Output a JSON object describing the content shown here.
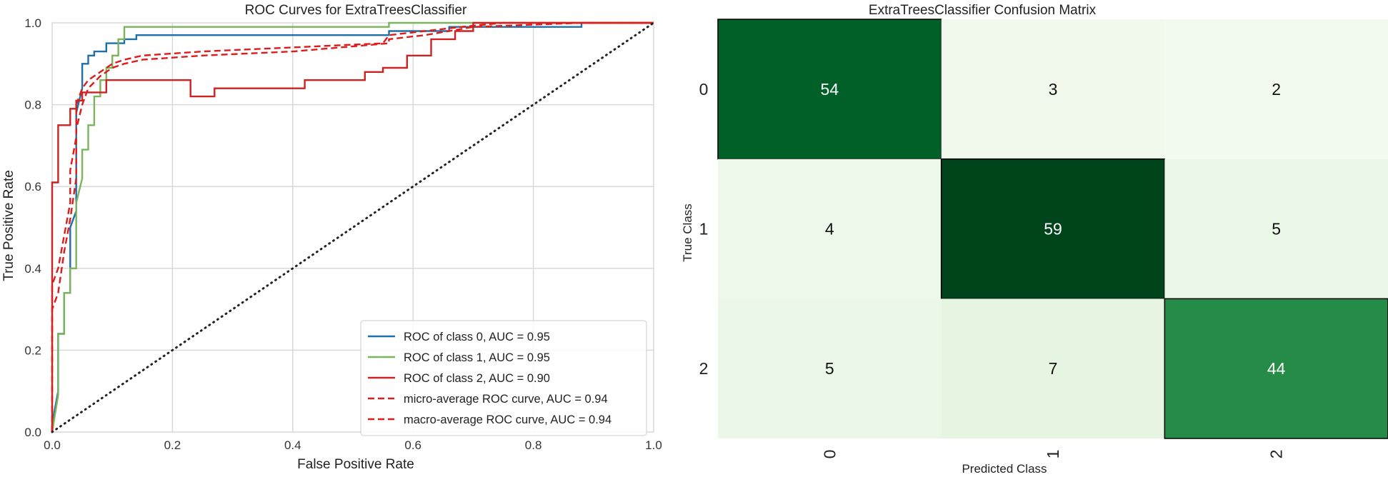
{
  "chart_data": [
    {
      "type": "line",
      "title": "ROC Curves for ExtraTreesClassifier",
      "xlabel": "False Positive Rate",
      "ylabel": "True Positive Rate",
      "xlim": [
        0.0,
        1.0
      ],
      "ylim": [
        0.0,
        1.0
      ],
      "x_ticks": [
        "0.0",
        "0.2",
        "0.4",
        "0.6",
        "0.8",
        "1.0"
      ],
      "y_ticks": [
        "0.0",
        "0.2",
        "0.4",
        "0.6",
        "0.8",
        "1.0"
      ],
      "grid": true,
      "legend_position": "lower-right",
      "series": [
        {
          "name": "ROC of class 0, AUC = 0.95",
          "color": "#1f6fa8",
          "dash": "solid",
          "points": [
            [
              0,
              0
            ],
            [
              0,
              0.02
            ],
            [
              0.01,
              0.1
            ],
            [
              0.01,
              0.24
            ],
            [
              0.02,
              0.24
            ],
            [
              0.02,
              0.34
            ],
            [
              0.03,
              0.34
            ],
            [
              0.03,
              0.44
            ],
            [
              0.03,
              0.5
            ],
            [
              0.04,
              0.54
            ],
            [
              0.04,
              0.78
            ],
            [
              0.05,
              0.84
            ],
            [
              0.05,
              0.9
            ],
            [
              0.06,
              0.9
            ],
            [
              0.06,
              0.92
            ],
            [
              0.07,
              0.92
            ],
            [
              0.07,
              0.93
            ],
            [
              0.09,
              0.93
            ],
            [
              0.09,
              0.95
            ],
            [
              0.12,
              0.95
            ],
            [
              0.12,
              0.96
            ],
            [
              0.14,
              0.96
            ],
            [
              0.14,
              0.97
            ],
            [
              0.56,
              0.97
            ],
            [
              0.56,
              0.98
            ],
            [
              0.66,
              0.98
            ],
            [
              0.66,
              0.99
            ],
            [
              0.88,
              0.99
            ],
            [
              0.88,
              1.0
            ],
            [
              1.0,
              1.0
            ]
          ]
        },
        {
          "name": "ROC of class 1, AUC = 0.95",
          "color": "#7ab55c",
          "dash": "solid",
          "points": [
            [
              0,
              0
            ],
            [
              0.01,
              0.09
            ],
            [
              0.01,
              0.24
            ],
            [
              0.02,
              0.24
            ],
            [
              0.02,
              0.34
            ],
            [
              0.03,
              0.34
            ],
            [
              0.03,
              0.4
            ],
            [
              0.04,
              0.4
            ],
            [
              0.04,
              0.56
            ],
            [
              0.05,
              0.62
            ],
            [
              0.05,
              0.69
            ],
            [
              0.06,
              0.69
            ],
            [
              0.06,
              0.75
            ],
            [
              0.07,
              0.75
            ],
            [
              0.07,
              0.82
            ],
            [
              0.08,
              0.82
            ],
            [
              0.08,
              0.86
            ],
            [
              0.09,
              0.86
            ],
            [
              0.09,
              0.89
            ],
            [
              0.1,
              0.89
            ],
            [
              0.1,
              0.92
            ],
            [
              0.11,
              0.92
            ],
            [
              0.11,
              0.96
            ],
            [
              0.12,
              0.96
            ],
            [
              0.12,
              0.99
            ],
            [
              0.56,
              0.99
            ],
            [
              0.56,
              1.0
            ],
            [
              1.0,
              1.0
            ]
          ]
        },
        {
          "name": "ROC of class 2, AUC = 0.90",
          "color": "#cc2222",
          "dash": "solid",
          "points": [
            [
              0,
              0
            ],
            [
              0,
              0.61
            ],
            [
              0.01,
              0.61
            ],
            [
              0.01,
              0.75
            ],
            [
              0.03,
              0.75
            ],
            [
              0.03,
              0.79
            ],
            [
              0.04,
              0.79
            ],
            [
              0.04,
              0.81
            ],
            [
              0.05,
              0.81
            ],
            [
              0.05,
              0.83
            ],
            [
              0.09,
              0.83
            ],
            [
              0.09,
              0.86
            ],
            [
              0.23,
              0.86
            ],
            [
              0.23,
              0.82
            ],
            [
              0.27,
              0.82
            ],
            [
              0.27,
              0.84
            ],
            [
              0.42,
              0.84
            ],
            [
              0.42,
              0.86
            ],
            [
              0.52,
              0.86
            ],
            [
              0.52,
              0.88
            ],
            [
              0.55,
              0.88
            ],
            [
              0.55,
              0.89
            ],
            [
              0.59,
              0.89
            ],
            [
              0.59,
              0.92
            ],
            [
              0.63,
              0.92
            ],
            [
              0.63,
              0.96
            ],
            [
              0.67,
              0.96
            ],
            [
              0.67,
              0.98
            ],
            [
              0.7,
              0.98
            ],
            [
              0.7,
              1.0
            ],
            [
              1.0,
              1.0
            ]
          ]
        },
        {
          "name": "micro-average ROC curve, AUC = 0.94",
          "color": "#dd1c1c",
          "dash": "dashed",
          "points": [
            [
              0,
              0
            ],
            [
              0,
              0.36
            ],
            [
              0.01,
              0.4
            ],
            [
              0.02,
              0.48
            ],
            [
              0.03,
              0.56
            ],
            [
              0.03,
              0.64
            ],
            [
              0.04,
              0.72
            ],
            [
              0.04,
              0.8
            ],
            [
              0.05,
              0.84
            ],
            [
              0.06,
              0.86
            ],
            [
              0.08,
              0.88
            ],
            [
              0.1,
              0.9
            ],
            [
              0.12,
              0.91
            ],
            [
              0.15,
              0.92
            ],
            [
              0.25,
              0.93
            ],
            [
              0.4,
              0.94
            ],
            [
              0.55,
              0.95
            ],
            [
              0.56,
              0.97
            ],
            [
              0.62,
              0.98
            ],
            [
              0.68,
              0.99
            ],
            [
              0.75,
              1.0
            ],
            [
              1.0,
              1.0
            ]
          ]
        },
        {
          "name": "macro-average ROC curve, AUC = 0.94",
          "color": "#dd1c1c",
          "dash": "dashed",
          "points": [
            [
              0,
              0
            ],
            [
              0,
              0.3
            ],
            [
              0.01,
              0.34
            ],
            [
              0.02,
              0.44
            ],
            [
              0.03,
              0.52
            ],
            [
              0.04,
              0.62
            ],
            [
              0.04,
              0.74
            ],
            [
              0.05,
              0.8
            ],
            [
              0.06,
              0.84
            ],
            [
              0.08,
              0.87
            ],
            [
              0.1,
              0.89
            ],
            [
              0.12,
              0.9
            ],
            [
              0.15,
              0.91
            ],
            [
              0.25,
              0.92
            ],
            [
              0.4,
              0.93
            ],
            [
              0.56,
              0.95
            ],
            [
              0.56,
              0.96
            ],
            [
              0.62,
              0.97
            ],
            [
              0.7,
              0.99
            ],
            [
              0.88,
              1.0
            ],
            [
              1.0,
              1.0
            ]
          ]
        },
        {
          "name": "",
          "color": "#222222",
          "dash": "dotted",
          "points": [
            [
              0,
              0
            ],
            [
              1,
              1
            ]
          ]
        }
      ]
    },
    {
      "type": "heatmap",
      "title": "ExtraTreesClassifier Confusion Matrix",
      "xlabel": "Predicted Class",
      "ylabel": "True Class",
      "x_categories": [
        "0",
        "1",
        "2"
      ],
      "y_categories": [
        "0",
        "1",
        "2"
      ],
      "values": [
        [
          54,
          3,
          2
        ],
        [
          4,
          59,
          5
        ],
        [
          5,
          7,
          44
        ]
      ],
      "colormap": "Greens"
    }
  ]
}
